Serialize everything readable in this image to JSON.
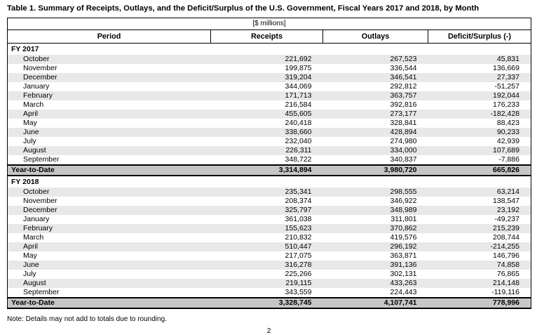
{
  "title": "Table 1. Summary of Receipts, Outlays, and the Deficit/Surplus of the U.S. Government, Fiscal Years 2017 and 2018, by Month",
  "subtitle": "[$ millions]",
  "columns": [
    "Period",
    "Receipts",
    "Outlays",
    "Deficit/Surplus (-)"
  ],
  "sections": [
    {
      "label": "FY 2017",
      "rows": [
        [
          "October",
          "221,692",
          "267,523",
          "45,831"
        ],
        [
          "November",
          "199,875",
          "336,544",
          "136,669"
        ],
        [
          "December",
          "319,204",
          "346,541",
          "27,337"
        ],
        [
          "January",
          "344,069",
          "292,812",
          "-51,257"
        ],
        [
          "February",
          "171,713",
          "363,757",
          "192,044"
        ],
        [
          "March",
          "216,584",
          "392,816",
          "176,233"
        ],
        [
          "April",
          "455,605",
          "273,177",
          "-182,428"
        ],
        [
          "May",
          "240,418",
          "328,841",
          "88,423"
        ],
        [
          "June",
          "338,660",
          "428,894",
          "90,233"
        ],
        [
          "July",
          "232,040",
          "274,980",
          "42,939"
        ],
        [
          "August",
          "226,311",
          "334,000",
          "107,689"
        ],
        [
          "September",
          "348,722",
          "340,837",
          "-7,886"
        ]
      ],
      "total": [
        "Year-to-Date",
        "3,314,894",
        "3,980,720",
        "665,826"
      ]
    },
    {
      "label": "FY 2018",
      "rows": [
        [
          "October",
          "235,341",
          "298,555",
          "63,214"
        ],
        [
          "November",
          "208,374",
          "346,922",
          "138,547"
        ],
        [
          "December",
          "325,797",
          "348,989",
          "23,192"
        ],
        [
          "January",
          "361,038",
          "311,801",
          "-49,237"
        ],
        [
          "February",
          "155,623",
          "370,862",
          "215,239"
        ],
        [
          "March",
          "210,832",
          "419,576",
          "208,744"
        ],
        [
          "April",
          "510,447",
          "296,192",
          "-214,255"
        ],
        [
          "May",
          "217,075",
          "363,871",
          "146,796"
        ],
        [
          "June",
          "316,278",
          "391,136",
          "74,858"
        ],
        [
          "July",
          "225,266",
          "302,131",
          "76,865"
        ],
        [
          "August",
          "219,115",
          "433,263",
          "214,148"
        ],
        [
          "September",
          "343,559",
          "224,443",
          "-119,116"
        ]
      ],
      "total": [
        "Year-to-Date",
        "3,328,745",
        "4,107,741",
        "778,996"
      ]
    }
  ],
  "note": "Note: Details may not add to totals due to rounding.",
  "page_number": "2",
  "colors": {
    "stripe": "#e8e8e8",
    "total_bg": "#c6c6c6",
    "border": "#000000"
  }
}
